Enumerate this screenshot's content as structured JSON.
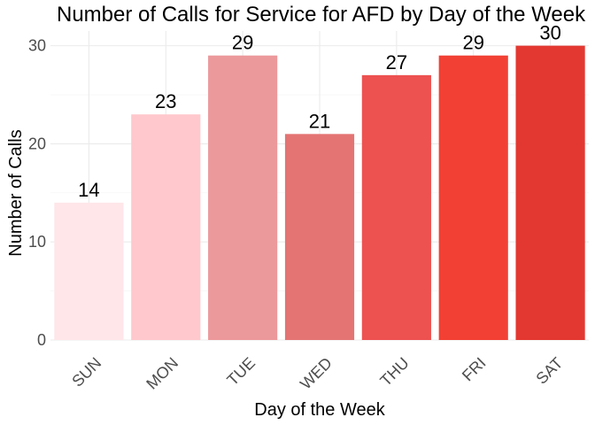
{
  "chart_data": {
    "type": "bar",
    "title": "Number of Calls for Service for AFD by Day of the Week",
    "xlabel": "Day of the Week",
    "ylabel": "Number of Calls",
    "categories": [
      "SUN",
      "MON",
      "TUE",
      "WED",
      "THU",
      "FRI",
      "SAT"
    ],
    "values": [
      14,
      23,
      29,
      21,
      27,
      29,
      30
    ],
    "ylim": [
      0,
      31.5
    ],
    "yticks": [
      0,
      10,
      20,
      30
    ],
    "grid": true,
    "legend": "none",
    "colors": [
      "#ffe6e9",
      "#ffc8cd",
      "#ec999b",
      "#e47474",
      "#ed5150",
      "#f24034",
      "#e33831"
    ]
  }
}
